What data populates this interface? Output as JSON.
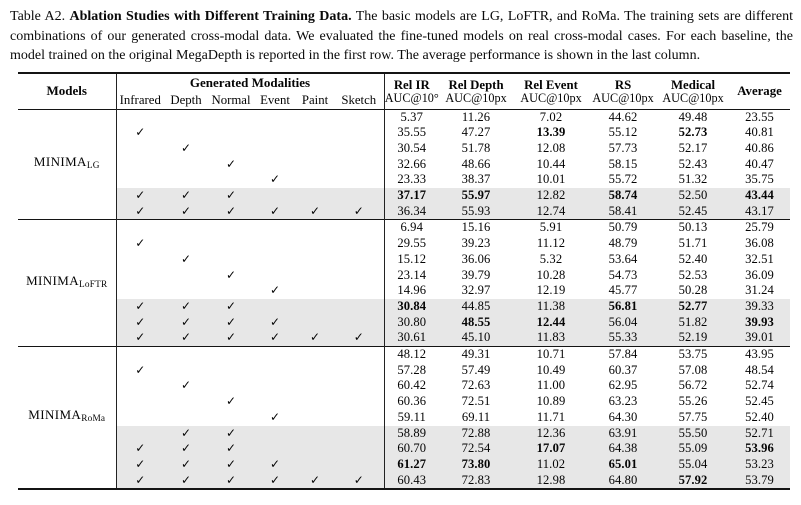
{
  "caption": {
    "prefix": "Table A2.",
    "bold_title": "Ablation Studies with Different Training Data.",
    "body": "The basic models are LG, LoFTR, and RoMa. The training sets are different combinations of our generated cross-modal data. We evaluated the fine-tuned models on real cross-modal cases. For each baseline, the model trained on the original MegaDepth is reported in the first row. The average performance is shown in the last column."
  },
  "glyphs": {
    "check": "✓"
  },
  "colors": {
    "highlight": "#e7e7e7",
    "rule": "#141414"
  },
  "table": {
    "header": {
      "models_label": "Models",
      "modalities_group_label": "Generated Modalities",
      "modalities": [
        "Infrared",
        "Depth",
        "Normal",
        "Event",
        "Paint",
        "Sketch"
      ],
      "metrics": [
        {
          "name": "Rel IR",
          "unit": "AUC@10°"
        },
        {
          "name": "Rel Depth",
          "unit": "AUC@10px"
        },
        {
          "name": "Rel Event",
          "unit": "AUC@10px"
        },
        {
          "name": "RS",
          "unit": "AUC@10px"
        },
        {
          "name": "Medical",
          "unit": "AUC@10px"
        },
        {
          "name": "Average",
          "unit": ""
        }
      ]
    },
    "groups": [
      {
        "model_base": "MINIMA",
        "model_sub": "LG",
        "rows": [
          {
            "checks": [
              0,
              0,
              0,
              0,
              0,
              0
            ],
            "values": [
              "5.37",
              "11.26",
              "7.02",
              "44.62",
              "49.48",
              "23.55"
            ],
            "bold": [
              0,
              0,
              0,
              0,
              0,
              0
            ],
            "highlight": false
          },
          {
            "checks": [
              1,
              0,
              0,
              0,
              0,
              0
            ],
            "values": [
              "35.55",
              "47.27",
              "13.39",
              "55.12",
              "52.73",
              "40.81"
            ],
            "bold": [
              0,
              0,
              1,
              0,
              1,
              0
            ],
            "highlight": false
          },
          {
            "checks": [
              0,
              1,
              0,
              0,
              0,
              0
            ],
            "values": [
              "30.54",
              "51.78",
              "12.08",
              "57.73",
              "52.17",
              "40.86"
            ],
            "bold": [
              0,
              0,
              0,
              0,
              0,
              0
            ],
            "highlight": false
          },
          {
            "checks": [
              0,
              0,
              1,
              0,
              0,
              0
            ],
            "values": [
              "32.66",
              "48.66",
              "10.44",
              "58.15",
              "52.43",
              "40.47"
            ],
            "bold": [
              0,
              0,
              0,
              0,
              0,
              0
            ],
            "highlight": false
          },
          {
            "checks": [
              0,
              0,
              0,
              1,
              0,
              0
            ],
            "values": [
              "23.33",
              "38.37",
              "10.01",
              "55.72",
              "51.32",
              "35.75"
            ],
            "bold": [
              0,
              0,
              0,
              0,
              0,
              0
            ],
            "highlight": false
          },
          {
            "checks": [
              1,
              1,
              1,
              0,
              0,
              0
            ],
            "values": [
              "37.17",
              "55.97",
              "12.82",
              "58.74",
              "52.50",
              "43.44"
            ],
            "bold": [
              1,
              1,
              0,
              1,
              0,
              1
            ],
            "highlight": true
          },
          {
            "checks": [
              1,
              1,
              1,
              1,
              1,
              1
            ],
            "values": [
              "36.34",
              "55.93",
              "12.74",
              "58.41",
              "52.45",
              "43.17"
            ],
            "bold": [
              0,
              0,
              0,
              0,
              0,
              0
            ],
            "highlight": true
          }
        ]
      },
      {
        "model_base": "MINIMA",
        "model_sub": "LoFTR",
        "rows": [
          {
            "checks": [
              0,
              0,
              0,
              0,
              0,
              0
            ],
            "values": [
              "6.94",
              "15.16",
              "5.91",
              "50.79",
              "50.13",
              "25.79"
            ],
            "bold": [
              0,
              0,
              0,
              0,
              0,
              0
            ],
            "highlight": false
          },
          {
            "checks": [
              1,
              0,
              0,
              0,
              0,
              0
            ],
            "values": [
              "29.55",
              "39.23",
              "11.12",
              "48.79",
              "51.71",
              "36.08"
            ],
            "bold": [
              0,
              0,
              0,
              0,
              0,
              0
            ],
            "highlight": false
          },
          {
            "checks": [
              0,
              1,
              0,
              0,
              0,
              0
            ],
            "values": [
              "15.12",
              "36.06",
              "5.32",
              "53.64",
              "52.40",
              "32.51"
            ],
            "bold": [
              0,
              0,
              0,
              0,
              0,
              0
            ],
            "highlight": false
          },
          {
            "checks": [
              0,
              0,
              1,
              0,
              0,
              0
            ],
            "values": [
              "23.14",
              "39.79",
              "10.28",
              "54.73",
              "52.53",
              "36.09"
            ],
            "bold": [
              0,
              0,
              0,
              0,
              0,
              0
            ],
            "highlight": false
          },
          {
            "checks": [
              0,
              0,
              0,
              1,
              0,
              0
            ],
            "values": [
              "14.96",
              "32.97",
              "12.19",
              "45.77",
              "50.28",
              "31.24"
            ],
            "bold": [
              0,
              0,
              0,
              0,
              0,
              0
            ],
            "highlight": false
          },
          {
            "checks": [
              1,
              1,
              1,
              0,
              0,
              0
            ],
            "values": [
              "30.84",
              "44.85",
              "11.38",
              "56.81",
              "52.77",
              "39.33"
            ],
            "bold": [
              1,
              0,
              0,
              1,
              1,
              0
            ],
            "highlight": true
          },
          {
            "checks": [
              1,
              1,
              1,
              1,
              0,
              0
            ],
            "values": [
              "30.80",
              "48.55",
              "12.44",
              "56.04",
              "51.82",
              "39.93"
            ],
            "bold": [
              0,
              1,
              1,
              0,
              0,
              1
            ],
            "highlight": true
          },
          {
            "checks": [
              1,
              1,
              1,
              1,
              1,
              1
            ],
            "values": [
              "30.61",
              "45.10",
              "11.83",
              "55.33",
              "52.19",
              "39.01"
            ],
            "bold": [
              0,
              0,
              0,
              0,
              0,
              0
            ],
            "highlight": true
          }
        ]
      },
      {
        "model_base": "MINIMA",
        "model_sub": "RoMa",
        "rows": [
          {
            "checks": [
              0,
              0,
              0,
              0,
              0,
              0
            ],
            "values": [
              "48.12",
              "49.31",
              "10.71",
              "57.84",
              "53.75",
              "43.95"
            ],
            "bold": [
              0,
              0,
              0,
              0,
              0,
              0
            ],
            "highlight": false
          },
          {
            "checks": [
              1,
              0,
              0,
              0,
              0,
              0
            ],
            "values": [
              "57.28",
              "57.49",
              "10.49",
              "60.37",
              "57.08",
              "48.54"
            ],
            "bold": [
              0,
              0,
              0,
              0,
              0,
              0
            ],
            "highlight": false
          },
          {
            "checks": [
              0,
              1,
              0,
              0,
              0,
              0
            ],
            "values": [
              "60.42",
              "72.63",
              "11.00",
              "62.95",
              "56.72",
              "52.74"
            ],
            "bold": [
              0,
              0,
              0,
              0,
              0,
              0
            ],
            "highlight": false
          },
          {
            "checks": [
              0,
              0,
              1,
              0,
              0,
              0
            ],
            "values": [
              "60.36",
              "72.51",
              "10.89",
              "63.23",
              "55.26",
              "52.45"
            ],
            "bold": [
              0,
              0,
              0,
              0,
              0,
              0
            ],
            "highlight": false
          },
          {
            "checks": [
              0,
              0,
              0,
              1,
              0,
              0
            ],
            "values": [
              "59.11",
              "69.11",
              "11.71",
              "64.30",
              "57.75",
              "52.40"
            ],
            "bold": [
              0,
              0,
              0,
              0,
              0,
              0
            ],
            "highlight": false
          },
          {
            "checks": [
              0,
              1,
              1,
              0,
              0,
              0
            ],
            "values": [
              "58.89",
              "72.88",
              "12.36",
              "63.91",
              "55.50",
              "52.71"
            ],
            "bold": [
              0,
              0,
              0,
              0,
              0,
              0
            ],
            "highlight": true
          },
          {
            "checks": [
              1,
              1,
              1,
              0,
              0,
              0
            ],
            "values": [
              "60.70",
              "72.54",
              "17.07",
              "64.38",
              "55.09",
              "53.96"
            ],
            "bold": [
              0,
              0,
              1,
              0,
              0,
              1
            ],
            "highlight": true
          },
          {
            "checks": [
              1,
              1,
              1,
              1,
              0,
              0
            ],
            "values": [
              "61.27",
              "73.80",
              "11.02",
              "65.01",
              "55.04",
              "53.23"
            ],
            "bold": [
              1,
              1,
              0,
              1,
              0,
              0
            ],
            "highlight": true
          },
          {
            "checks": [
              1,
              1,
              1,
              1,
              1,
              1
            ],
            "values": [
              "60.43",
              "72.83",
              "12.98",
              "64.80",
              "57.92",
              "53.79"
            ],
            "bold": [
              0,
              0,
              0,
              0,
              1,
              0
            ],
            "highlight": true
          }
        ]
      }
    ]
  }
}
